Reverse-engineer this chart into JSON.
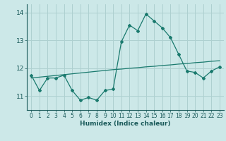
{
  "x": [
    0,
    1,
    2,
    3,
    4,
    5,
    6,
    7,
    8,
    9,
    10,
    11,
    12,
    13,
    14,
    15,
    16,
    17,
    18,
    19,
    20,
    21,
    22,
    23
  ],
  "y_curve": [
    11.75,
    11.2,
    11.65,
    11.65,
    11.75,
    11.2,
    10.85,
    10.95,
    10.85,
    11.2,
    11.25,
    12.95,
    13.55,
    13.35,
    13.95,
    13.7,
    13.45,
    13.1,
    12.5,
    11.9,
    11.85,
    11.65,
    11.9,
    12.05
  ],
  "y_trend": [
    11.65,
    11.68,
    11.71,
    11.74,
    11.77,
    11.8,
    11.83,
    11.86,
    11.89,
    11.92,
    11.95,
    11.97,
    12.0,
    12.02,
    12.05,
    12.07,
    12.1,
    12.12,
    12.15,
    12.17,
    12.2,
    12.22,
    12.25,
    12.27
  ],
  "ylim": [
    10.5,
    14.3
  ],
  "yticks": [
    11,
    12,
    13,
    14
  ],
  "xticks": [
    0,
    1,
    2,
    3,
    4,
    5,
    6,
    7,
    8,
    9,
    10,
    11,
    12,
    13,
    14,
    15,
    16,
    17,
    18,
    19,
    20,
    21,
    22,
    23
  ],
  "xlabel": "Humidex (Indice chaleur)",
  "line_color": "#1a7a6e",
  "bg_color": "#cce8e8",
  "grid_color": "#aed0d0",
  "tick_color": "#1a5a5a"
}
